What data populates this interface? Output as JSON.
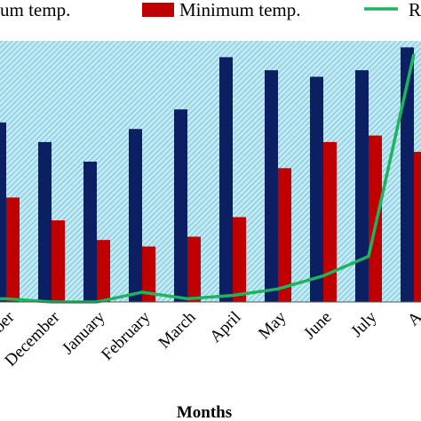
{
  "chart_data": {
    "type": "bar",
    "categories": [
      "November",
      "December",
      "January",
      "February",
      "March",
      "April",
      "May",
      "June",
      "July",
      "August"
    ],
    "category_labels_visible": [
      "vember",
      "December",
      "January",
      "February",
      "March",
      "April",
      "May",
      "June",
      "July",
      "A"
    ],
    "xlabel": "Months",
    "series": [
      {
        "name": "Maximum temp.",
        "legend_label_visible": "um temp.",
        "type": "bar",
        "color": "#0d1f63",
        "values": [
          27.5,
          24.5,
          21.5,
          26.5,
          29.5,
          37.5,
          35.5,
          34.5,
          35.5,
          39.0
        ]
      },
      {
        "name": "Minimum temp.",
        "legend_label_visible": "Minimum temp.",
        "type": "bar",
        "color": "#c00000",
        "values": [
          16.0,
          12.5,
          9.5,
          8.5,
          10.0,
          13.0,
          20.5,
          24.5,
          25.5,
          23.0
        ]
      },
      {
        "name": "R",
        "legend_label_visible": "R",
        "type": "line",
        "color": "#1fb35e",
        "values": [
          0.5,
          0.0,
          0.0,
          1.5,
          0.5,
          1.0,
          2.0,
          4.0,
          7.0,
          38.0
        ]
      }
    ],
    "ylim": [
      0,
      40
    ],
    "legend_position": "top",
    "plot_background": "light blue hatched",
    "grid": false
  }
}
